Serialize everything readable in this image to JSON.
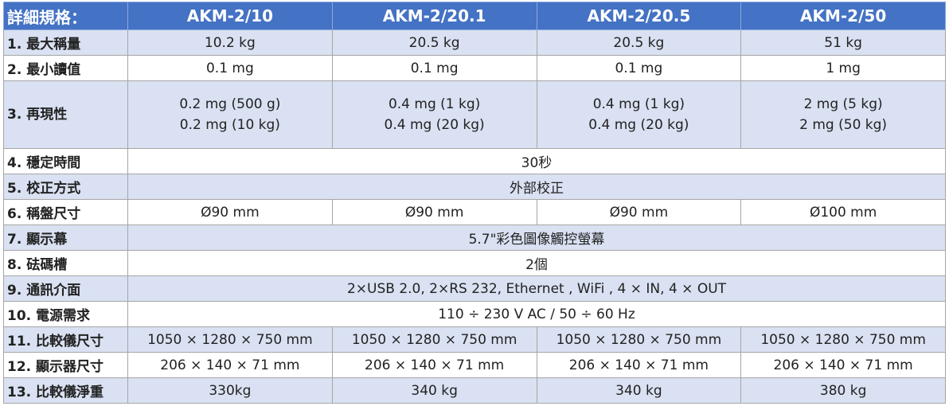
{
  "header": {
    "label": "詳細規格：",
    "models": [
      "AKM-2/10",
      "AKM-2/20.1",
      "AKM-2/20.5",
      "AKM-2/50"
    ]
  },
  "rows": [
    {
      "label": "1. 最大稱量",
      "cells": [
        "10.2 kg",
        "20.5 kg",
        "20.5 kg",
        "51 kg"
      ]
    },
    {
      "label": "2. 最小讀值",
      "cells": [
        "0.1 mg",
        "0.1 mg",
        "0.1 mg",
        "1 mg"
      ]
    },
    {
      "label": "3. 再現性",
      "cells": [
        [
          "0.2 mg (500 g)",
          "0.2 mg (10 kg)"
        ],
        [
          "0.4 mg (1 kg)",
          "0.4 mg (20 kg)"
        ],
        [
          "0.4 mg (1 kg)",
          "0.4 mg (20 kg)"
        ],
        [
          "2 mg (5 kg)",
          "2 mg (50 kg)"
        ]
      ]
    },
    {
      "label": "4. 穩定時間",
      "cells": [
        "30秒"
      ]
    },
    {
      "label": "5. 校正方式",
      "cells": [
        "外部校正"
      ]
    },
    {
      "label": "6. 稱盤尺寸",
      "cells": [
        "Ø90 mm",
        "Ø90 mm",
        "Ø90 mm",
        "Ø100 mm"
      ]
    },
    {
      "label": "7. 顯示幕",
      "cells": [
        "5.7\"彩色圖像觸控螢幕"
      ]
    },
    {
      "label": "8. 砝碼槽",
      "cells": [
        "2個"
      ]
    },
    {
      "label": "9. 通訊介面",
      "cells": [
        "2×USB 2.0, 2×RS 232, Ethernet , WiFi , 4 × IN, 4 × OUT"
      ]
    },
    {
      "label": "10. 電源需求",
      "cells": [
        "110 ÷ 230 V AC / 50 ÷ 60 Hz"
      ]
    },
    {
      "label": "11. 比較儀尺寸",
      "cells": [
        "1050 × 1280 × 750 mm",
        "1050 × 1280 × 750 mm",
        "1050 × 1280 × 750 mm",
        "1050 × 1280 × 750 mm"
      ]
    },
    {
      "label": "12. 顯示器尺寸",
      "cells": [
        "206 × 140 × 71 mm",
        "206 × 140 × 71 mm",
        "206 × 140 × 71 mm",
        "206 × 140 × 71 mm"
      ]
    },
    {
      "label": "13. 比較儀淨重",
      "cells": [
        "330kg",
        "340 kg",
        "340 kg",
        "380 kg"
      ]
    }
  ]
}
